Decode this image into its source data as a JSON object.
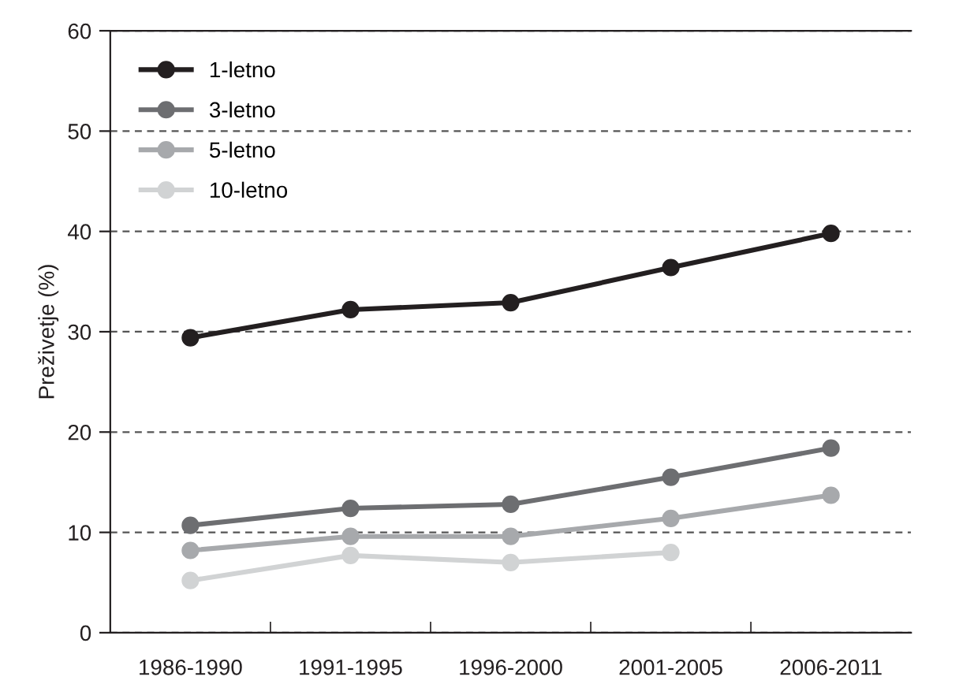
{
  "chart_data": {
    "type": "line",
    "ylabel": "Preživetje (%)",
    "categories": [
      "1986-1990",
      "1991-1995",
      "1996-2000",
      "2001-2005",
      "2006-2011"
    ],
    "series": [
      {
        "name": "1-letno",
        "color": "#231f20",
        "values": [
          29.4,
          32.2,
          32.9,
          36.4,
          39.8
        ]
      },
      {
        "name": "3-letno",
        "color": "#6d6e71",
        "values": [
          10.7,
          12.4,
          12.8,
          15.5,
          18.4
        ]
      },
      {
        "name": "5-letno",
        "color": "#a7a9ac",
        "values": [
          8.2,
          9.6,
          9.6,
          11.4,
          13.7
        ]
      },
      {
        "name": "10-letno",
        "color": "#d1d3d4",
        "values": [
          5.2,
          7.7,
          7.0,
          8.0,
          null
        ]
      }
    ],
    "ylim": [
      0,
      60
    ],
    "yticks": [
      0,
      10,
      20,
      30,
      40,
      50,
      60
    ],
    "grid": "y",
    "legend": "top left",
    "marker": "circle",
    "line_style": "solid"
  }
}
